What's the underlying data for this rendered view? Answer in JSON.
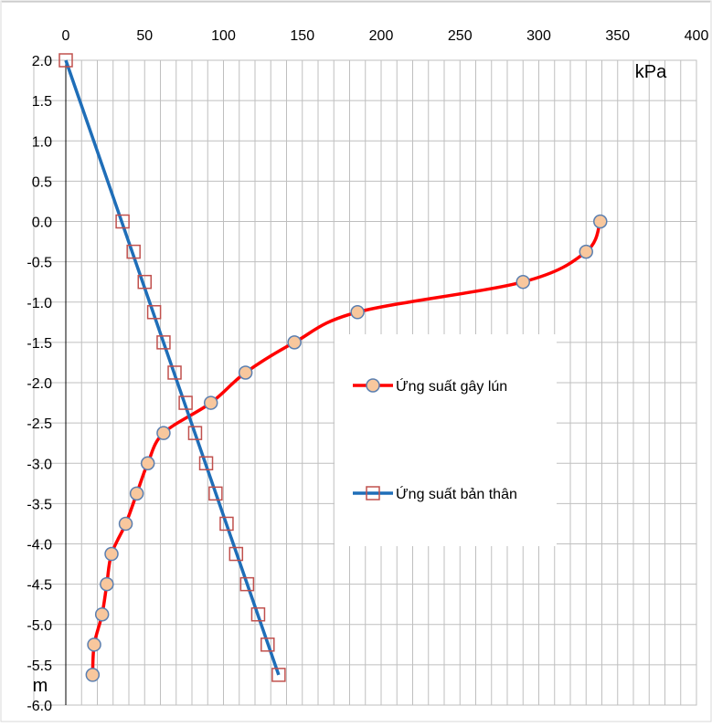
{
  "chart_data": {
    "type": "line",
    "title": "",
    "xlabel": "kPa",
    "ylabel": "m",
    "xlim": [
      0,
      400
    ],
    "ylim": [
      -6.0,
      2.0
    ],
    "x_ticks": [
      0,
      50,
      100,
      150,
      200,
      250,
      300,
      350,
      400
    ],
    "y_ticks": [
      "2.0",
      "1.5",
      "1.0",
      "0.5",
      "0.0",
      "-0.5",
      "-1.0",
      "-1.5",
      "-2.0",
      "-2.5",
      "-3.0",
      "-3.5",
      "-4.0",
      "-4.5",
      "-5.0",
      "-5.5",
      "-6.0"
    ],
    "x_axis_position": "top",
    "grid": true,
    "grid_minor_x_step": 10,
    "legend_position": "center-right",
    "series": [
      {
        "name": "Ứng suất gây lún",
        "color": "#ff0000",
        "marker": "circle",
        "marker_fill": "#f8c79d",
        "marker_stroke": "#5b7fb0",
        "smooth": true,
        "points": [
          [
            339,
            0.0
          ],
          [
            330,
            -0.375
          ],
          [
            290,
            -0.75
          ],
          [
            185,
            -1.125
          ],
          [
            145,
            -1.5
          ],
          [
            114,
            -1.875
          ],
          [
            92,
            -2.25
          ],
          [
            62,
            -2.625
          ],
          [
            52,
            -3.0
          ],
          [
            45,
            -3.375
          ],
          [
            38,
            -3.75
          ],
          [
            29,
            -4.125
          ],
          [
            26,
            -4.5
          ],
          [
            23,
            -4.875
          ],
          [
            18,
            -5.25
          ],
          [
            17,
            -5.625
          ]
        ]
      },
      {
        "name": "Ứng suất bản thân",
        "color": "#1f6eb8",
        "marker": "square",
        "marker_fill": "#ffffff",
        "marker_stroke": "#c0504d",
        "line_endpoints": [
          [
            0,
            2.0
          ],
          [
            135,
            -5.625
          ]
        ],
        "points": [
          [
            0,
            2.0
          ],
          [
            36,
            0.0
          ],
          [
            43,
            -0.375
          ],
          [
            50,
            -0.75
          ],
          [
            56,
            -1.125
          ],
          [
            62,
            -1.5
          ],
          [
            69,
            -1.875
          ],
          [
            76,
            -2.25
          ],
          [
            82,
            -2.625
          ],
          [
            89,
            -3.0
          ],
          [
            95,
            -3.375
          ],
          [
            102,
            -3.75
          ],
          [
            108,
            -4.125
          ],
          [
            115,
            -4.5
          ],
          [
            122,
            -4.875
          ],
          [
            128,
            -5.25
          ],
          [
            135,
            -5.625
          ]
        ]
      }
    ]
  }
}
